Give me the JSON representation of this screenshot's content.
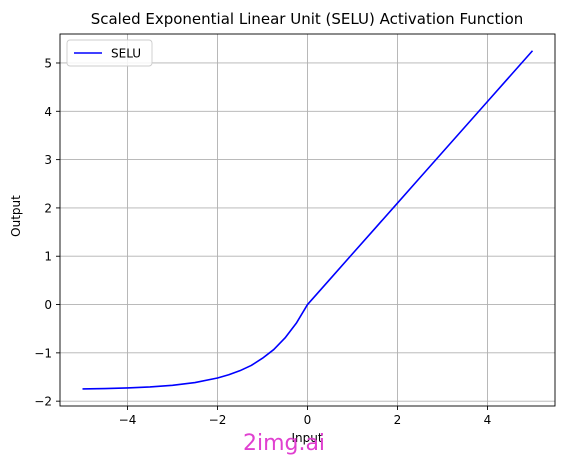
{
  "chart_data": {
    "type": "line",
    "title": "Scaled Exponential Linear Unit (SELU) Activation Function",
    "xlabel": "Input",
    "ylabel": "Output",
    "xlim": [
      -5.5,
      5.5
    ],
    "ylim": [
      -2.1,
      5.6
    ],
    "xticks": [
      -4,
      -2,
      0,
      2,
      4
    ],
    "xtick_labels": [
      "−4",
      "−2",
      "0",
      "2",
      "4"
    ],
    "yticks": [
      -2,
      -1,
      0,
      1,
      2,
      3,
      4,
      5
    ],
    "ytick_labels": [
      "−2",
      "−1",
      "0",
      "1",
      "2",
      "3",
      "4",
      "5"
    ],
    "grid": true,
    "legend_position": "upper-left",
    "series": [
      {
        "name": "SELU",
        "color": "#0000ff",
        "x": [
          -5.0,
          -4.5,
          -4.0,
          -3.5,
          -3.0,
          -2.5,
          -2.0,
          -1.75,
          -1.5,
          -1.25,
          -1.0,
          -0.75,
          -0.5,
          -0.25,
          0.0,
          0.5,
          1.0,
          1.5,
          2.0,
          2.5,
          3.0,
          3.5,
          4.0,
          4.5,
          5.0
        ],
        "y": [
          -1.747,
          -1.739,
          -1.726,
          -1.705,
          -1.671,
          -1.615,
          -1.52,
          -1.454,
          -1.369,
          -1.26,
          -1.111,
          -0.932,
          -0.692,
          -0.388,
          0.0,
          0.525,
          1.051,
          1.576,
          2.101,
          2.627,
          3.152,
          3.677,
          4.203,
          4.728,
          5.254
        ]
      }
    ]
  },
  "watermark": {
    "text": "2img.ai",
    "color": "#e040d0"
  }
}
